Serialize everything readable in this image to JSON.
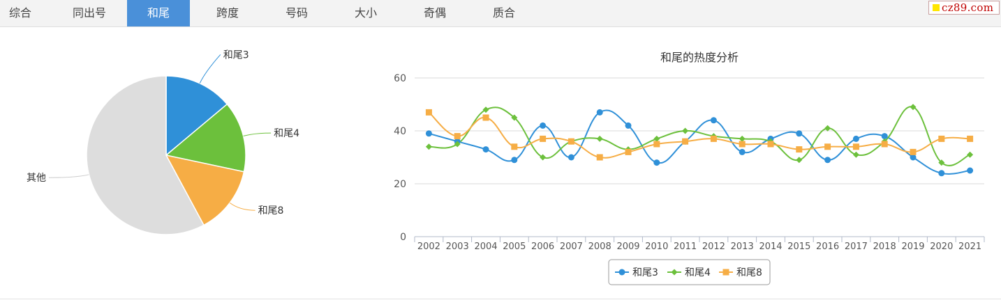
{
  "tabs": [
    {
      "label": "综合"
    },
    {
      "label": "同出号"
    },
    {
      "label": "和尾"
    },
    {
      "label": "跨度"
    },
    {
      "label": "号码"
    },
    {
      "label": "大小"
    },
    {
      "label": "奇偶"
    },
    {
      "label": "质合"
    }
  ],
  "active_tab": 2,
  "logo": {
    "text": "cz89.com"
  },
  "colors": {
    "hewei3": "#2f90d8",
    "hewei4": "#6cc03c",
    "hewei8": "#f6ad45",
    "other": "#dddddd",
    "active_tab": "#4a90d9"
  },
  "chart_data": [
    {
      "type": "pie",
      "slices": [
        {
          "label": "和尾3",
          "value": 36,
          "color": "#2f90d8"
        },
        {
          "label": "和尾4",
          "value": 37.5,
          "color": "#6cc03c"
        },
        {
          "label": "和尾8",
          "value": 35.8,
          "color": "#f6ad45"
        },
        {
          "label": "其他",
          "value": 150,
          "color": "#dddddd"
        }
      ]
    },
    {
      "type": "line",
      "title": "和尾的热度分析",
      "categories": [
        "2002",
        "2003",
        "2004",
        "2005",
        "2006",
        "2007",
        "2008",
        "2009",
        "2010",
        "2011",
        "2012",
        "2013",
        "2014",
        "2015",
        "2016",
        "2017",
        "2018",
        "2019",
        "2020",
        "2021"
      ],
      "ylim": [
        0,
        60
      ],
      "yticks": [
        "0",
        "20",
        "40",
        "60"
      ],
      "grid": true,
      "legend_position": "bottom",
      "series": [
        {
          "name": "和尾3",
          "color": "#2f90d8",
          "marker": "circle",
          "values": [
            39,
            36,
            33,
            29,
            42,
            30,
            47,
            42,
            28,
            36,
            44,
            32,
            37,
            39,
            29,
            37,
            38,
            30,
            24,
            25
          ]
        },
        {
          "name": "和尾4",
          "color": "#6cc03c",
          "marker": "diamond",
          "values": [
            34,
            35,
            48,
            45,
            30,
            36,
            37,
            33,
            37,
            40,
            38,
            37,
            36,
            29,
            41,
            31,
            36,
            49,
            28,
            31
          ]
        },
        {
          "name": "和尾8",
          "color": "#f6ad45",
          "marker": "square",
          "values": [
            47,
            38,
            45,
            34,
            37,
            36,
            30,
            32,
            35,
            36,
            37,
            35,
            35,
            33,
            34,
            34,
            35,
            32,
            37,
            37
          ]
        }
      ]
    }
  ]
}
